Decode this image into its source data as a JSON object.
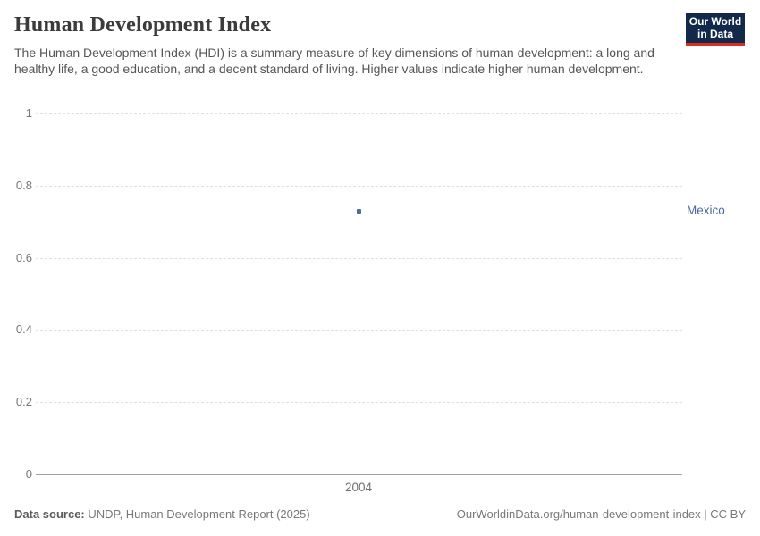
{
  "header": {
    "title": "Human Development Index",
    "subtitle": "The Human Development Index (HDI) is a summary measure of key dimensions of human development: a long and healthy life, a good education, and a decent standard of living. Higher values indicate higher human development.",
    "logo_line1": "Our World",
    "logo_line2": "in Data"
  },
  "chart_data": {
    "type": "scatter",
    "title": "Human Development Index",
    "xlabel": "",
    "ylabel": "",
    "x_ticks": [
      2004
    ],
    "y_ticks": [
      0,
      0.2,
      0.4,
      0.6,
      0.8,
      1
    ],
    "ylim": [
      0,
      1
    ],
    "grid": "horizontal-dashed",
    "legend_position": "right-of-point",
    "series": [
      {
        "name": "Mexico",
        "color": "#4c6a9c",
        "points": [
          {
            "x": 2004,
            "y": 0.73
          }
        ]
      }
    ]
  },
  "footer": {
    "source_label": "Data source:",
    "source_text": " UNDP, Human Development Report (2025)",
    "credit": "OurWorldinData.org/human-development-index | CC BY"
  },
  "colors": {
    "series_blue": "#4c6a9c",
    "grid": "#e0e0e0",
    "axis": "#a1a1a1",
    "logo_bg": "#12294b",
    "logo_red": "#dc2f22"
  }
}
